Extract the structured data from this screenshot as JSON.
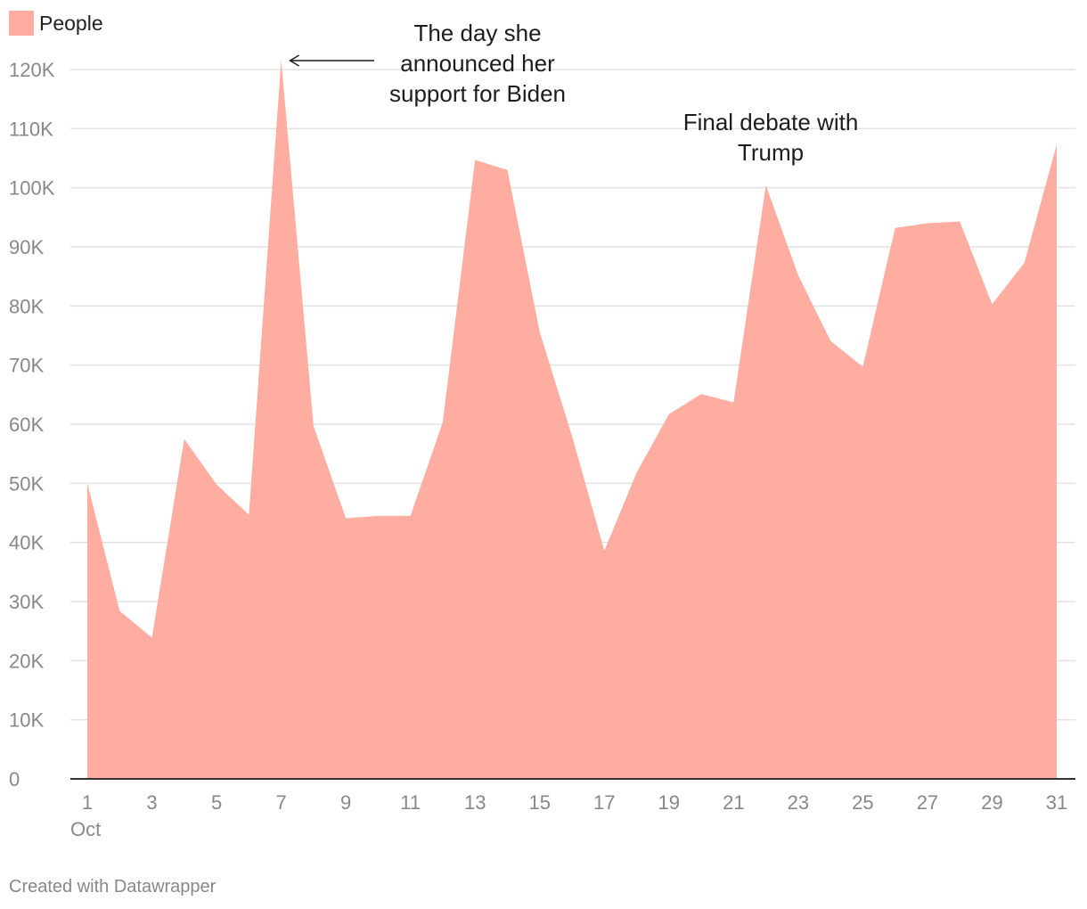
{
  "colors": {
    "area": "#ffaca1",
    "grid": "#e2e2e2",
    "axis": "#333333",
    "tick_text": "#888888"
  },
  "footer": "Created with Datawrapper",
  "chart_data": {
    "type": "area",
    "legend": {
      "position": "top-left",
      "entries": [
        "People"
      ]
    },
    "x": [
      1,
      2,
      3,
      4,
      5,
      6,
      7,
      8,
      9,
      10,
      11,
      12,
      13,
      14,
      15,
      16,
      17,
      18,
      19,
      20,
      21,
      22,
      23,
      24,
      25,
      26,
      27,
      28,
      29,
      30,
      31
    ],
    "series": [
      {
        "name": "People",
        "values": [
          50000,
          28400,
          23900,
          57500,
          49800,
          44700,
          121600,
          59700,
          44100,
          44500,
          44500,
          60300,
          104700,
          103000,
          75600,
          58000,
          38600,
          51800,
          61700,
          65100,
          63700,
          100400,
          85200,
          74100,
          69700,
          93200,
          94000,
          94300,
          80300,
          87300,
          107300
        ]
      }
    ],
    "xlim": [
      1,
      31
    ],
    "ylim": [
      0,
      120000
    ],
    "x_ticks": [
      1,
      3,
      5,
      7,
      9,
      11,
      13,
      15,
      17,
      19,
      21,
      23,
      25,
      27,
      29,
      31
    ],
    "x_tick_labels": [
      "1",
      "3",
      "5",
      "7",
      "9",
      "11",
      "13",
      "15",
      "17",
      "19",
      "21",
      "23",
      "25",
      "27",
      "29",
      "31"
    ],
    "x_sublabel": "Oct",
    "y_ticks": [
      0,
      10000,
      20000,
      30000,
      40000,
      50000,
      60000,
      70000,
      80000,
      90000,
      100000,
      110000,
      120000
    ],
    "y_tick_labels": [
      "0",
      "10K",
      "20K",
      "30K",
      "40K",
      "50K",
      "60K",
      "70K",
      "80K",
      "90K",
      "100K",
      "110K",
      "120K"
    ],
    "grid": true,
    "annotations": [
      {
        "lines": [
          "The day she",
          "announced her",
          "support for Biden"
        ],
        "x": 7,
        "y": 121600,
        "arrow": true
      },
      {
        "lines": [
          "Final debate with",
          "Trump"
        ],
        "x": 22,
        "y": 100400,
        "arrow": false
      }
    ]
  }
}
